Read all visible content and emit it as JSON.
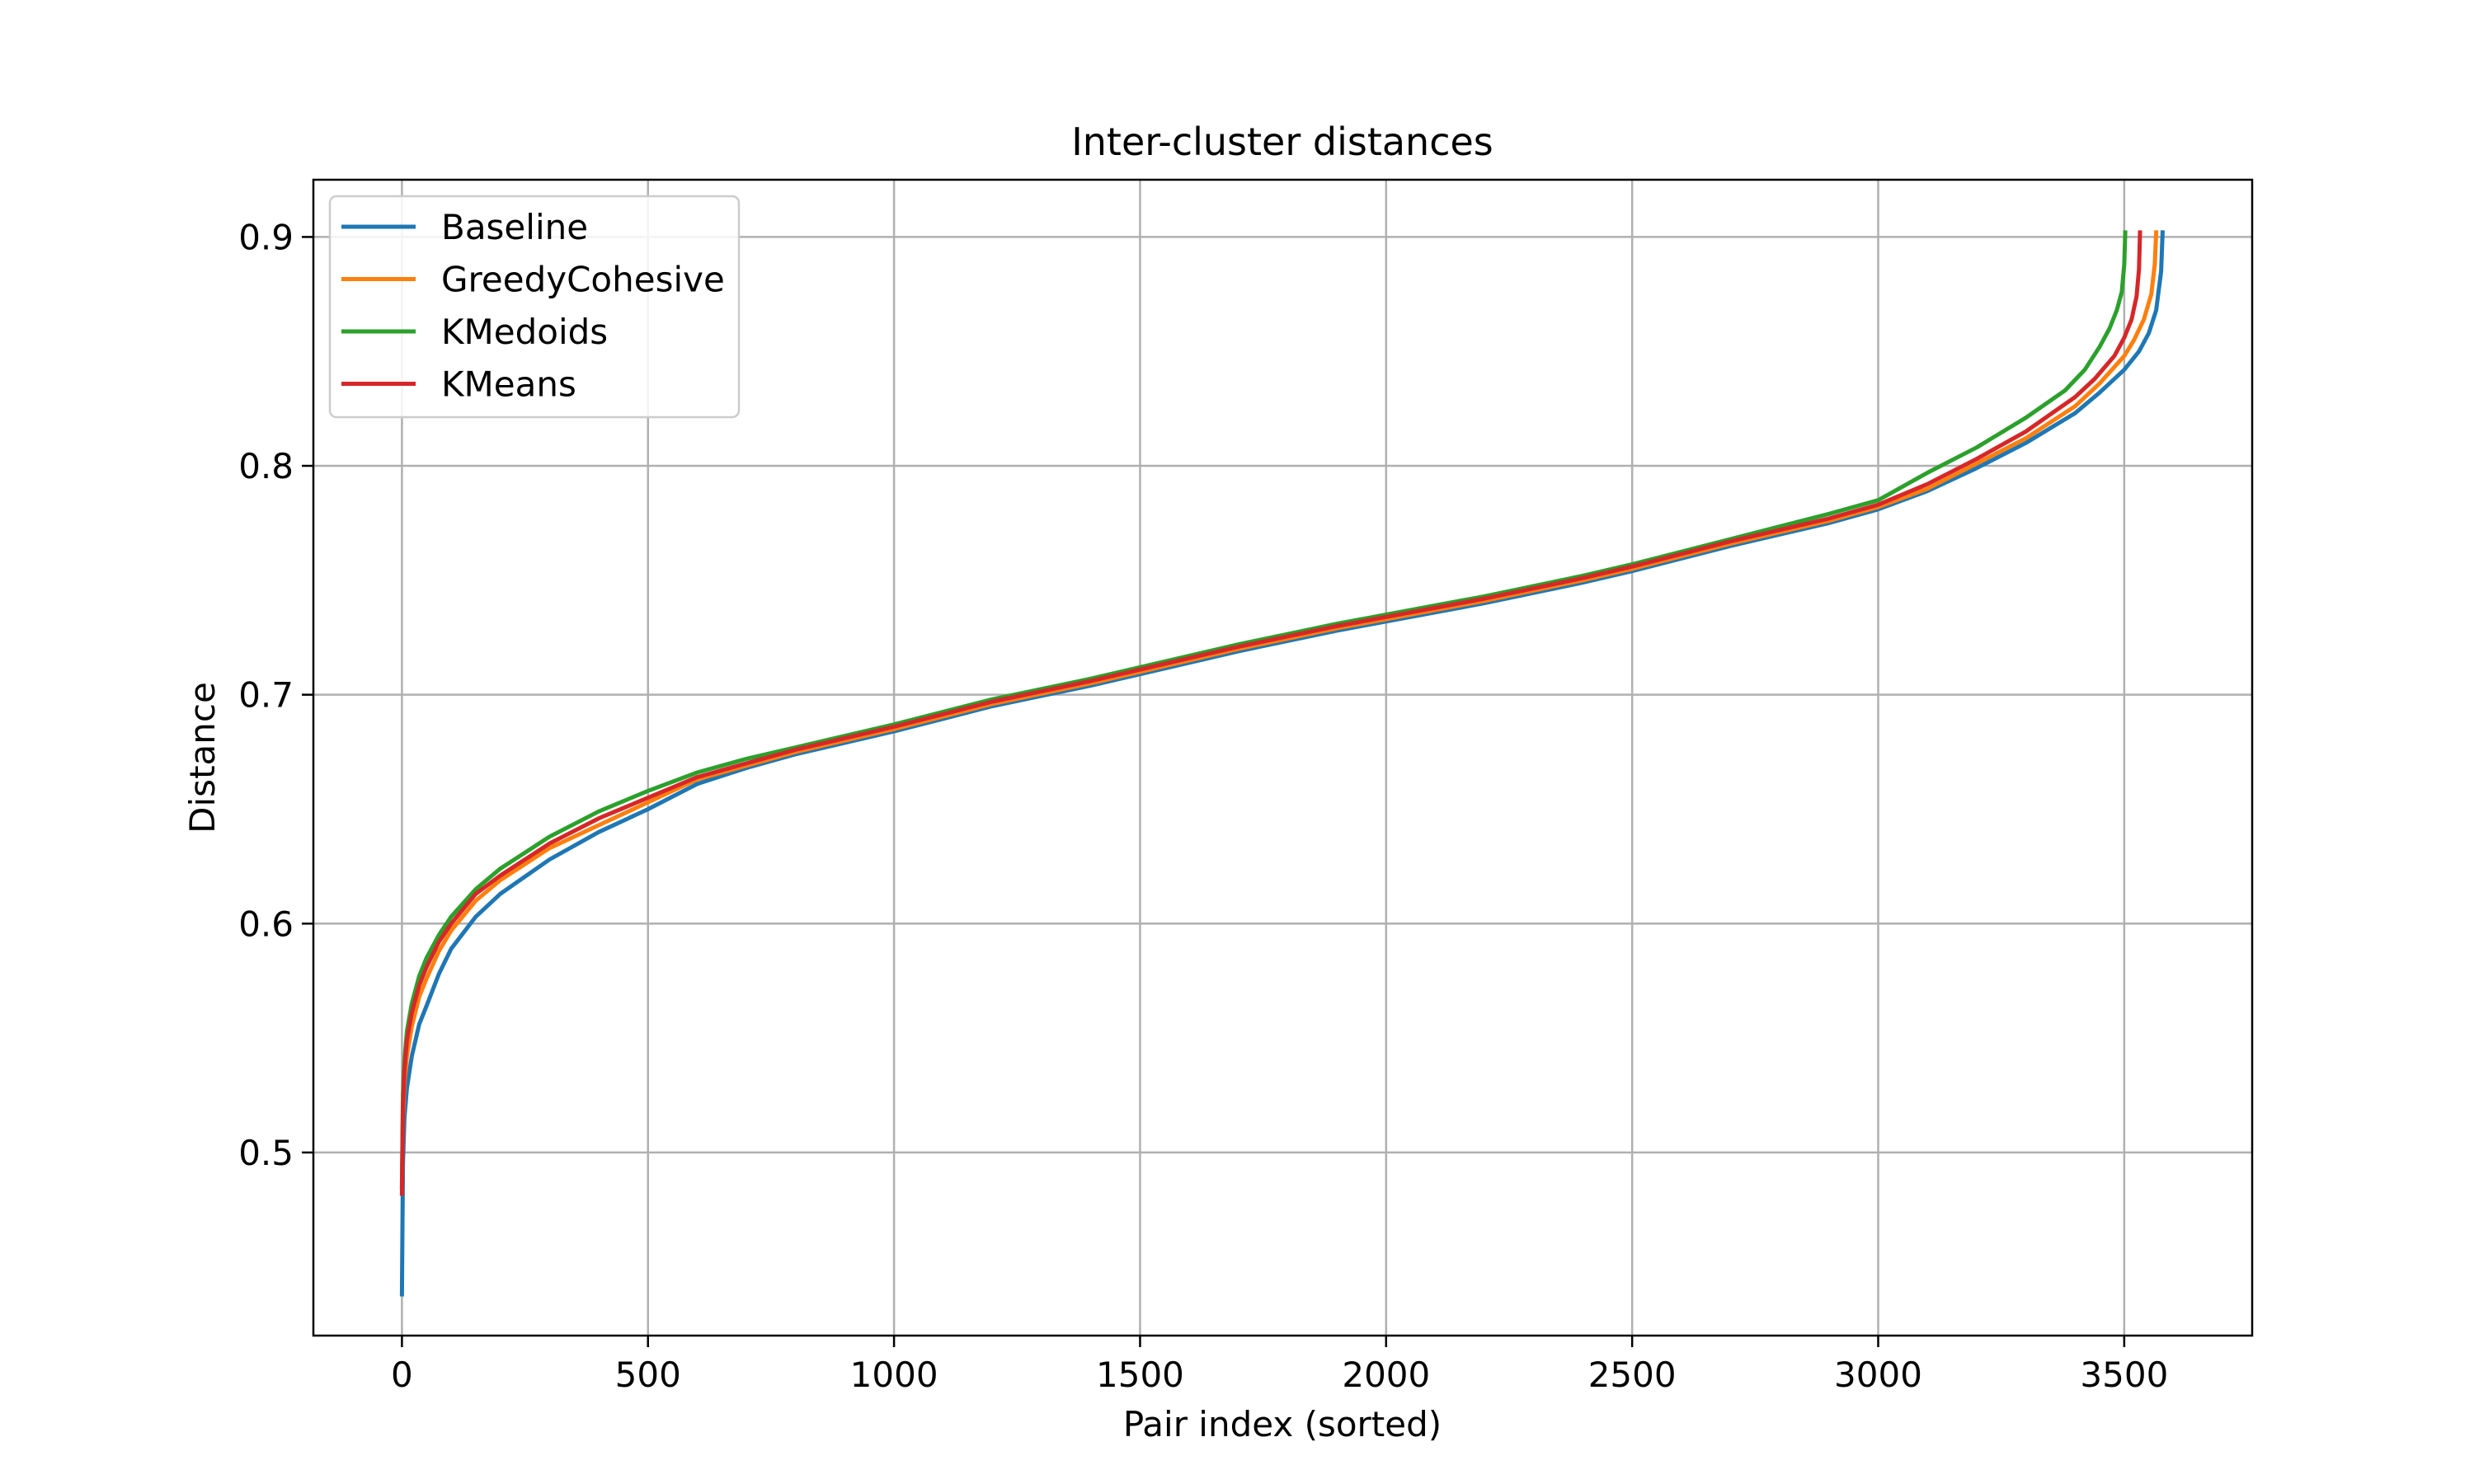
{
  "chart_data": {
    "type": "line",
    "title": "Inter-cluster distances",
    "xlabel": "Pair index (sorted)",
    "ylabel": "Distance",
    "xlim": [
      -180,
      3760
    ],
    "ylim": [
      0.42,
      0.925
    ],
    "xticks": [
      0,
      500,
      1000,
      1500,
      2000,
      2500,
      3000,
      3500
    ],
    "yticks": [
      0.5,
      0.6,
      0.7,
      0.8,
      0.9
    ],
    "xtick_labels": [
      "0",
      "500",
      "1000",
      "1500",
      "2000",
      "2500",
      "3000",
      "3500"
    ],
    "ytick_labels": [
      "0.5",
      "0.6",
      "0.7",
      "0.8",
      "0.9"
    ],
    "grid": true,
    "legend_position": "upper-left",
    "series": [
      {
        "name": "Baseline",
        "color": "#1f77b4",
        "x": [
          0,
          2,
          5,
          10,
          20,
          35,
          50,
          75,
          100,
          150,
          200,
          300,
          400,
          500,
          600,
          700,
          800,
          1000,
          1200,
          1400,
          1500,
          1700,
          1900,
          2000,
          2200,
          2400,
          2500,
          2700,
          2900,
          3000,
          3100,
          3200,
          3300,
          3400,
          3450,
          3500,
          3530,
          3550,
          3565,
          3575,
          3578
        ],
        "y": [
          0.438,
          0.495,
          0.515,
          0.528,
          0.542,
          0.556,
          0.564,
          0.578,
          0.589,
          0.603,
          0.613,
          0.628,
          0.64,
          0.65,
          0.661,
          0.668,
          0.674,
          0.684,
          0.695,
          0.704,
          0.709,
          0.719,
          0.728,
          0.732,
          0.74,
          0.749,
          0.754,
          0.765,
          0.775,
          0.781,
          0.789,
          0.799,
          0.81,
          0.823,
          0.832,
          0.842,
          0.85,
          0.858,
          0.868,
          0.885,
          0.902
        ]
      },
      {
        "name": "GreedyCohesive",
        "color": "#ff7f0e",
        "x": [
          0,
          2,
          5,
          10,
          20,
          35,
          50,
          75,
          100,
          150,
          200,
          300,
          400,
          500,
          600,
          700,
          800,
          1000,
          1200,
          1400,
          1500,
          1700,
          1900,
          2000,
          2200,
          2400,
          2500,
          2700,
          2900,
          3000,
          3100,
          3200,
          3300,
          3400,
          3450,
          3500,
          3520,
          3540,
          3555,
          3562,
          3565
        ],
        "y": [
          0.485,
          0.515,
          0.53,
          0.542,
          0.555,
          0.568,
          0.576,
          0.588,
          0.597,
          0.61,
          0.619,
          0.633,
          0.643,
          0.653,
          0.663,
          0.669,
          0.675,
          0.685,
          0.696,
          0.705,
          0.71,
          0.72,
          0.729,
          0.733,
          0.741,
          0.75,
          0.755,
          0.766,
          0.776,
          0.782,
          0.79,
          0.801,
          0.812,
          0.826,
          0.836,
          0.848,
          0.855,
          0.864,
          0.875,
          0.888,
          0.902
        ]
      },
      {
        "name": "KMedoids",
        "color": "#2ca02c",
        "x": [
          0,
          2,
          5,
          10,
          20,
          35,
          50,
          75,
          100,
          150,
          200,
          300,
          400,
          500,
          600,
          700,
          800,
          1000,
          1200,
          1400,
          1500,
          1700,
          1900,
          2000,
          2200,
          2400,
          2500,
          2700,
          2900,
          3000,
          3100,
          3200,
          3300,
          3380,
          3420,
          3450,
          3470,
          3485,
          3495,
          3500,
          3502
        ],
        "y": [
          0.485,
          0.525,
          0.54,
          0.553,
          0.565,
          0.577,
          0.585,
          0.595,
          0.603,
          0.615,
          0.624,
          0.638,
          0.649,
          0.658,
          0.666,
          0.672,
          0.677,
          0.687,
          0.698,
          0.707,
          0.712,
          0.722,
          0.731,
          0.735,
          0.743,
          0.752,
          0.757,
          0.768,
          0.779,
          0.785,
          0.797,
          0.808,
          0.821,
          0.833,
          0.842,
          0.852,
          0.86,
          0.868,
          0.876,
          0.888,
          0.902
        ]
      },
      {
        "name": "KMeans",
        "color": "#d62728",
        "x": [
          0,
          2,
          5,
          10,
          20,
          35,
          50,
          75,
          100,
          150,
          200,
          300,
          400,
          500,
          600,
          700,
          800,
          1000,
          1200,
          1400,
          1500,
          1700,
          1900,
          2000,
          2200,
          2400,
          2500,
          2700,
          2900,
          3000,
          3100,
          3200,
          3300,
          3400,
          3440,
          3480,
          3500,
          3515,
          3525,
          3530,
          3532
        ],
        "y": [
          0.482,
          0.52,
          0.536,
          0.549,
          0.561,
          0.573,
          0.581,
          0.592,
          0.6,
          0.613,
          0.621,
          0.635,
          0.646,
          0.655,
          0.664,
          0.67,
          0.676,
          0.686,
          0.697,
          0.706,
          0.711,
          0.721,
          0.73,
          0.734,
          0.742,
          0.751,
          0.756,
          0.767,
          0.777,
          0.783,
          0.792,
          0.803,
          0.815,
          0.83,
          0.838,
          0.848,
          0.856,
          0.864,
          0.874,
          0.886,
          0.902
        ]
      }
    ]
  }
}
